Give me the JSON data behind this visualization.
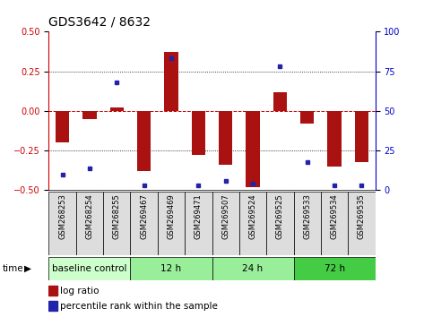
{
  "title": "GDS3642 / 8632",
  "samples": [
    "GSM268253",
    "GSM268254",
    "GSM268255",
    "GSM269467",
    "GSM269469",
    "GSM269471",
    "GSM269507",
    "GSM269524",
    "GSM269525",
    "GSM269533",
    "GSM269534",
    "GSM269535"
  ],
  "log_ratio": [
    -0.2,
    -0.05,
    0.02,
    -0.38,
    0.37,
    -0.28,
    -0.34,
    -0.48,
    0.12,
    -0.08,
    -0.35,
    -0.32
  ],
  "percentile_rank": [
    10,
    14,
    68,
    3,
    83,
    3,
    6,
    4,
    78,
    18,
    3,
    3
  ],
  "group_defs": [
    {
      "label": "baseline control",
      "start": 0,
      "end": 3,
      "color": "#ccffcc"
    },
    {
      "label": "12 h",
      "start": 3,
      "end": 6,
      "color": "#99ee99"
    },
    {
      "label": "24 h",
      "start": 6,
      "end": 9,
      "color": "#99ee99"
    },
    {
      "label": "72 h",
      "start": 9,
      "end": 12,
      "color": "#44cc44"
    }
  ],
  "ylim_left": [
    -0.5,
    0.5
  ],
  "ylim_right": [
    0,
    100
  ],
  "yticks_left": [
    -0.5,
    -0.25,
    0,
    0.25,
    0.5
  ],
  "yticks_right": [
    0,
    25,
    50,
    75,
    100
  ],
  "bar_color": "#aa1111",
  "dot_color": "#2222aa",
  "zero_line_color": "#cc0000",
  "left_axis_color": "#cc0000",
  "right_axis_color": "#0000cc",
  "sample_box_color": "#dddddd",
  "dotted_line_vals": [
    0.25,
    -0.25
  ],
  "bar_width": 0.5
}
